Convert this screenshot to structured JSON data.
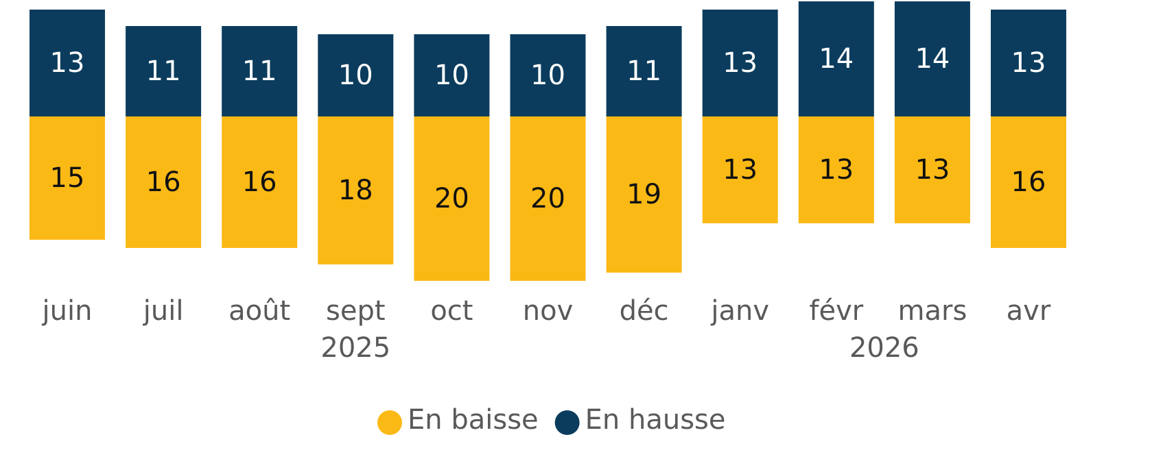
{
  "chart_data": {
    "type": "bar",
    "categories": [
      "juin",
      "juil",
      "août",
      "sept",
      "oct",
      "nov",
      "déc",
      "janv",
      "févr",
      "mars",
      "avr"
    ],
    "x_groups": [
      {
        "label": "2025",
        "from": 0,
        "to": 6
      },
      {
        "label": "2026",
        "from": 7,
        "to": 10
      }
    ],
    "series": [
      {
        "name": "En baisse",
        "color": "#fbb916",
        "values": [
          15,
          16,
          16,
          18,
          20,
          20,
          19,
          13,
          13,
          13,
          16
        ]
      },
      {
        "name": "En hausse",
        "color": "#0b3c5d",
        "values": [
          13,
          11,
          11,
          10,
          10,
          10,
          11,
          13,
          14,
          14,
          13
        ]
      }
    ]
  }
}
